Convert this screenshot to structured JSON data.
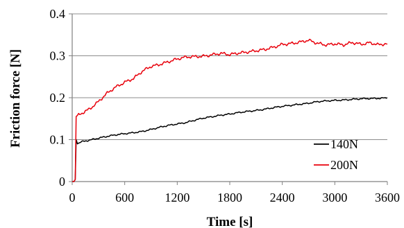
{
  "chart_data": {
    "type": "line",
    "title": "",
    "xlabel": "Time [s]",
    "ylabel": "Friction force [N]",
    "xlim": [
      0,
      3600
    ],
    "ylim": [
      0,
      0.4
    ],
    "x_ticks": [
      0,
      600,
      1200,
      1800,
      2400,
      3000,
      3600
    ],
    "y_ticks": [
      0,
      0.1,
      0.2,
      0.3,
      0.4
    ],
    "x_tick_labels": [
      "0",
      "600",
      "1200",
      "1800",
      "2400",
      "3000",
      "3600"
    ],
    "y_tick_labels": [
      "0",
      "0.1",
      "0.2",
      "0.3",
      "0.4"
    ],
    "grid": "horizontal",
    "legend_position": "bottom-right",
    "series": [
      {
        "name": "140N",
        "color": "#000000",
        "x": [
          0,
          20,
          35,
          45,
          60,
          100,
          200,
          300,
          400,
          500,
          600,
          700,
          800,
          900,
          1000,
          1100,
          1200,
          1300,
          1400,
          1500,
          1600,
          1700,
          1800,
          1900,
          2000,
          2100,
          2200,
          2300,
          2400,
          2500,
          2600,
          2700,
          2800,
          2900,
          3000,
          3100,
          3200,
          3300,
          3400,
          3500,
          3600
        ],
        "values": [
          0,
          0,
          0.005,
          0.1,
          0.09,
          0.094,
          0.099,
          0.104,
          0.108,
          0.111,
          0.114,
          0.117,
          0.12,
          0.124,
          0.129,
          0.134,
          0.138,
          0.141,
          0.146,
          0.151,
          0.155,
          0.159,
          0.161,
          0.164,
          0.167,
          0.17,
          0.173,
          0.176,
          0.179,
          0.182,
          0.185,
          0.187,
          0.19,
          0.192,
          0.194,
          0.195,
          0.196,
          0.197,
          0.198,
          0.199,
          0.2
        ]
      },
      {
        "name": "200N",
        "color": "#e8000b",
        "x": [
          0,
          20,
          35,
          45,
          60,
          100,
          200,
          300,
          400,
          500,
          600,
          700,
          800,
          900,
          1000,
          1100,
          1200,
          1300,
          1400,
          1500,
          1600,
          1700,
          1800,
          1900,
          2000,
          2100,
          2200,
          2300,
          2400,
          2500,
          2600,
          2700,
          2800,
          2900,
          3000,
          3100,
          3200,
          3300,
          3400,
          3500,
          3600
        ],
        "values": [
          0,
          0,
          0.005,
          0.155,
          0.158,
          0.163,
          0.174,
          0.19,
          0.21,
          0.226,
          0.238,
          0.246,
          0.262,
          0.274,
          0.28,
          0.287,
          0.292,
          0.296,
          0.298,
          0.3,
          0.303,
          0.305,
          0.302,
          0.307,
          0.31,
          0.312,
          0.314,
          0.32,
          0.328,
          0.33,
          0.332,
          0.336,
          0.33,
          0.327,
          0.329,
          0.325,
          0.331,
          0.328,
          0.332,
          0.326,
          0.328
        ]
      }
    ]
  }
}
